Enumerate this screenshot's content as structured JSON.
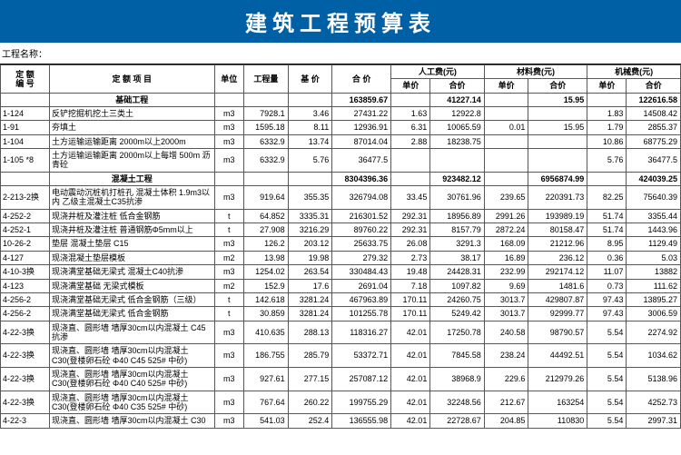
{
  "title": "建筑工程预算表",
  "project_label": "工程名称：",
  "headers": {
    "code": "定 额\n编 号",
    "item": "定 额 项 目",
    "unit": "单位",
    "qty": "工程量",
    "base": "基  价",
    "total": "合  价",
    "labor": "人工费(元)",
    "material": "材料费(元)",
    "machine": "机械费(元)",
    "unit_price": "单价",
    "sum_price": "合价"
  },
  "sections": [
    {
      "name": "基础工程",
      "totals": {
        "total": "163859.67",
        "labor_sum": "41227.14",
        "mat_sum": "15.95",
        "mach_sum": "122616.58"
      },
      "rows": [
        {
          "code": "1-124",
          "item": "反铲挖掘机挖土三类土",
          "unit": "m3",
          "qty": "7928.1",
          "base": "3.46",
          "total": "27431.22",
          "lu": "1.63",
          "ls": "12922.8",
          "mu": "",
          "ms": "",
          "hu": "1.83",
          "hs": "14508.42"
        },
        {
          "code": "1-91",
          "item": "夯填土",
          "unit": "m3",
          "qty": "1595.18",
          "base": "8.11",
          "total": "12936.91",
          "lu": "6.31",
          "ls": "10065.59",
          "mu": "0.01",
          "ms": "15.95",
          "hu": "1.79",
          "hs": "2855.37"
        },
        {
          "code": "1-104",
          "item": "土方运输运输距离 2000m以上2000m",
          "unit": "m3",
          "qty": "6332.9",
          "base": "13.74",
          "total": "87014.04",
          "lu": "2.88",
          "ls": "18238.75",
          "mu": "",
          "ms": "",
          "hu": "10.86",
          "hs": "68775.29"
        },
        {
          "code": "1-105 *8",
          "item": "土方运输运输距离 2000m以上每增 500m 沥青砼",
          "unit": "m3",
          "qty": "6332.9",
          "base": "5.76",
          "total": "36477.5",
          "lu": "",
          "ls": "",
          "mu": "",
          "ms": "",
          "hu": "5.76",
          "hs": "36477.5"
        }
      ]
    },
    {
      "name": "混凝土工程",
      "totals": {
        "total": "8304396.36",
        "labor_sum": "923482.12",
        "mat_sum": "6956874.99",
        "mach_sum": "424039.25"
      },
      "rows": [
        {
          "code": "2-213-2换",
          "item": "电动震动沉桩机打桩孔 混凝土体积 1.9m3以内 乙级主混凝土C35抗渗",
          "unit": "m3",
          "qty": "919.64",
          "base": "355.35",
          "total": "326794.08",
          "lu": "33.45",
          "ls": "30761.96",
          "mu": "239.65",
          "ms": "220391.73",
          "hu": "82.25",
          "hs": "75640.39"
        },
        {
          "code": "4-252-2",
          "item": "现浇井桩及灌注桩 低合金钢筋",
          "unit": "t",
          "qty": "64.852",
          "base": "3335.31",
          "total": "216301.52",
          "lu": "292.31",
          "ls": "18956.89",
          "mu": "2991.26",
          "ms": "193989.19",
          "hu": "51.74",
          "hs": "3355.44"
        },
        {
          "code": "4-252-1",
          "item": "现浇井桩及灌注桩 普通钢筋Φ5mm以上",
          "unit": "t",
          "qty": "27.908",
          "base": "3216.29",
          "total": "89760.22",
          "lu": "292.31",
          "ls": "8157.79",
          "mu": "2872.24",
          "ms": "80158.47",
          "hu": "51.74",
          "hs": "1443.96"
        },
        {
          "code": "10-26-2",
          "item": "垫层 混凝土垫层 C15",
          "unit": "m3",
          "qty": "126.2",
          "base": "203.12",
          "total": "25633.75",
          "lu": "26.08",
          "ls": "3291.3",
          "mu": "168.09",
          "ms": "21212.96",
          "hu": "8.95",
          "hs": "1129.49"
        },
        {
          "code": "4-127",
          "item": "现浇混凝土垫层模板",
          "unit": "m2",
          "qty": "13.98",
          "base": "19.98",
          "total": "279.32",
          "lu": "2.73",
          "ls": "38.17",
          "mu": "16.89",
          "ms": "236.12",
          "hu": "0.36",
          "hs": "5.03"
        },
        {
          "code": "4-10-3换",
          "item": "现浇满堂基础无梁式 混凝土C40抗渗",
          "unit": "m3",
          "qty": "1254.02",
          "base": "263.54",
          "total": "330484.43",
          "lu": "19.48",
          "ls": "24428.31",
          "mu": "232.99",
          "ms": "292174.12",
          "hu": "11.07",
          "hs": "13882"
        },
        {
          "code": "4-123",
          "item": "现浇满堂基础 无梁式模板",
          "unit": "m2",
          "qty": "152.9",
          "base": "17.6",
          "total": "2691.04",
          "lu": "7.18",
          "ls": "1097.82",
          "mu": "9.69",
          "ms": "1481.6",
          "hu": "0.73",
          "hs": "111.62"
        },
        {
          "code": "4-256-2",
          "item": "现浇满堂基础无梁式 低合金钢筋（三级）",
          "unit": "t",
          "qty": "142.618",
          "base": "3281.24",
          "total": "467963.89",
          "lu": "170.11",
          "ls": "24260.75",
          "mu": "3013.7",
          "ms": "429807.87",
          "hu": "97.43",
          "hs": "13895.27"
        },
        {
          "code": "4-256-2",
          "item": "现浇满堂基础无梁式 低合金钢筋",
          "unit": "t",
          "qty": "30.859",
          "base": "3281.24",
          "total": "101255.78",
          "lu": "170.11",
          "ls": "5249.42",
          "mu": "3013.7",
          "ms": "92999.77",
          "hu": "97.43",
          "hs": "3006.59"
        },
        {
          "code": "4-22-3换",
          "item": "现浇直、圆形墙 墙厚30cm以内混凝土 C45抗渗",
          "unit": "m3",
          "qty": "410.635",
          "base": "288.13",
          "total": "118316.27",
          "lu": "42.01",
          "ls": "17250.78",
          "mu": "240.58",
          "ms": "98790.57",
          "hu": "5.54",
          "hs": "2274.92"
        },
        {
          "code": "4-22-3换",
          "item": "现浇直、圆形墙 墙厚30cm以内混凝土 C30(登楼卵石砼 Φ40 C45 525# 中砂)",
          "unit": "m3",
          "qty": "186.755",
          "base": "285.79",
          "total": "53372.71",
          "lu": "42.01",
          "ls": "7845.58",
          "mu": "238.24",
          "ms": "44492.51",
          "hu": "5.54",
          "hs": "1034.62"
        },
        {
          "code": "4-22-3换",
          "item": "现浇直、圆形墙 墙厚30cm以内混凝土 C30(登楼卵石砼 Φ40 C40 525# 中砂)",
          "unit": "m3",
          "qty": "927.61",
          "base": "277.15",
          "total": "257087.12",
          "lu": "42.01",
          "ls": "38968.9",
          "mu": "229.6",
          "ms": "212979.26",
          "hu": "5.54",
          "hs": "5138.96"
        },
        {
          "code": "4-22-3换",
          "item": "现浇直、圆形墙 墙厚30cm以内混凝土 C30(登楼卵石砼 Φ40 C35 525# 中砂)",
          "unit": "m3",
          "qty": "767.64",
          "base": "260.22",
          "total": "199755.29",
          "lu": "42.01",
          "ls": "32248.56",
          "mu": "212.67",
          "ms": "163254",
          "hu": "5.54",
          "hs": "4252.73"
        },
        {
          "code": "4-22-3",
          "item": "现浇直、圆形墙 墙厚30cm以内混凝土 C30",
          "unit": "m3",
          "qty": "541.03",
          "base": "252.4",
          "total": "136555.98",
          "lu": "42.01",
          "ls": "22728.67",
          "mu": "204.85",
          "ms": "110830",
          "hu": "5.54",
          "hs": "2997.31"
        }
      ]
    }
  ]
}
